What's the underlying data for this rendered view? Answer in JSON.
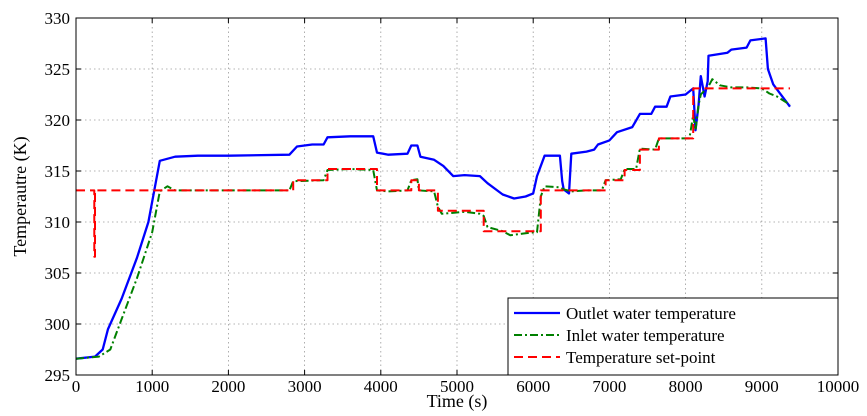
{
  "chart_data": {
    "type": "line",
    "xlabel": "Time (s)",
    "ylabel": "Temperautre (K)",
    "xlim": [
      0,
      10000
    ],
    "ylim": [
      295,
      330
    ],
    "xticks": [
      0,
      1000,
      2000,
      3000,
      4000,
      5000,
      6000,
      7000,
      8000,
      9000,
      10000
    ],
    "yticks": [
      295,
      300,
      305,
      310,
      315,
      320,
      325,
      330
    ],
    "grid": true,
    "legend_position": "bottom-right",
    "series": [
      {
        "name": "Outlet water temperature",
        "color": "#0000ff",
        "style": "solid",
        "points": [
          [
            0,
            296.6
          ],
          [
            250,
            296.8
          ],
          [
            350,
            297.5
          ],
          [
            420,
            299.5
          ],
          [
            600,
            302.5
          ],
          [
            800,
            306.5
          ],
          [
            950,
            310
          ],
          [
            1050,
            314
          ],
          [
            1100,
            316
          ],
          [
            1300,
            316.4
          ],
          [
            1600,
            316.5
          ],
          [
            2000,
            316.5
          ],
          [
            2800,
            316.6
          ],
          [
            2900,
            317.4
          ],
          [
            3100,
            317.6
          ],
          [
            3250,
            317.6
          ],
          [
            3300,
            318.3
          ],
          [
            3600,
            318.4
          ],
          [
            3900,
            318.4
          ],
          [
            3950,
            316.8
          ],
          [
            4100,
            316.6
          ],
          [
            4350,
            316.7
          ],
          [
            4400,
            317.5
          ],
          [
            4480,
            317.5
          ],
          [
            4520,
            316.4
          ],
          [
            4700,
            316.1
          ],
          [
            4820,
            315.5
          ],
          [
            4950,
            314.5
          ],
          [
            5100,
            314.6
          ],
          [
            5300,
            314.5
          ],
          [
            5400,
            313.8
          ],
          [
            5600,
            312.7
          ],
          [
            5750,
            312.3
          ],
          [
            5900,
            312.5
          ],
          [
            6000,
            312.8
          ],
          [
            6050,
            314.5
          ],
          [
            6150,
            316.5
          ],
          [
            6350,
            316.5
          ],
          [
            6380,
            314
          ],
          [
            6400,
            313.2
          ],
          [
            6470,
            312.8
          ],
          [
            6500,
            316.7
          ],
          [
            6700,
            316.9
          ],
          [
            6800,
            317.1
          ],
          [
            6850,
            317.6
          ],
          [
            7000,
            318
          ],
          [
            7100,
            318.8
          ],
          [
            7300,
            319.3
          ],
          [
            7400,
            320.6
          ],
          [
            7550,
            320.6
          ],
          [
            7600,
            321.3
          ],
          [
            7750,
            321.3
          ],
          [
            7800,
            322.3
          ],
          [
            8000,
            322.5
          ],
          [
            8100,
            323.1
          ],
          [
            8130,
            319
          ],
          [
            8170,
            321.5
          ],
          [
            8200,
            324.3
          ],
          [
            8250,
            322.3
          ],
          [
            8290,
            323.8
          ],
          [
            8300,
            326.3
          ],
          [
            8550,
            326.6
          ],
          [
            8600,
            326.9
          ],
          [
            8800,
            327.1
          ],
          [
            8850,
            327.8
          ],
          [
            9050,
            328
          ],
          [
            9080,
            325
          ],
          [
            9150,
            323.5
          ],
          [
            9200,
            323
          ],
          [
            9370,
            321.3
          ]
        ]
      },
      {
        "name": "Inlet water temperature",
        "color": "#008000",
        "style": "dashdot",
        "points": [
          [
            0,
            296.6
          ],
          [
            300,
            296.8
          ],
          [
            450,
            297.5
          ],
          [
            600,
            300.5
          ],
          [
            800,
            304.5
          ],
          [
            1000,
            309
          ],
          [
            1100,
            313
          ],
          [
            1200,
            313.5
          ],
          [
            1300,
            313.1
          ],
          [
            1600,
            313.1
          ],
          [
            2000,
            313.1
          ],
          [
            2800,
            313.1
          ],
          [
            2850,
            314
          ],
          [
            3250,
            314.1
          ],
          [
            3300,
            315.1
          ],
          [
            3600,
            315.2
          ],
          [
            3900,
            315.1
          ],
          [
            3950,
            313.1
          ],
          [
            4100,
            313
          ],
          [
            4350,
            313.1
          ],
          [
            4400,
            314.1
          ],
          [
            4480,
            314.2
          ],
          [
            4500,
            313.1
          ],
          [
            4700,
            313
          ],
          [
            4750,
            311.5
          ],
          [
            4800,
            310.8
          ],
          [
            5100,
            311
          ],
          [
            5300,
            310.8
          ],
          [
            5350,
            310.6
          ],
          [
            5400,
            309.5
          ],
          [
            5600,
            309.1
          ],
          [
            5700,
            308.7
          ],
          [
            5900,
            308.9
          ],
          [
            6050,
            309
          ],
          [
            6100,
            312.5
          ],
          [
            6150,
            313.5
          ],
          [
            6350,
            313.4
          ],
          [
            6400,
            313.2
          ],
          [
            6500,
            313
          ],
          [
            6700,
            313.1
          ],
          [
            6900,
            313.1
          ],
          [
            6950,
            314.1
          ],
          [
            7150,
            314.2
          ],
          [
            7200,
            315.2
          ],
          [
            7350,
            315.2
          ],
          [
            7400,
            317.2
          ],
          [
            7600,
            317.1
          ],
          [
            7650,
            318.2
          ],
          [
            8050,
            318.2
          ],
          [
            8100,
            320.5
          ],
          [
            8130,
            319
          ],
          [
            8170,
            321.5
          ],
          [
            8200,
            322.5
          ],
          [
            8300,
            323.3
          ],
          [
            8350,
            324
          ],
          [
            8450,
            323.4
          ],
          [
            8600,
            323.2
          ],
          [
            8800,
            323.2
          ],
          [
            9000,
            323.1
          ],
          [
            9100,
            322.6
          ],
          [
            9200,
            322.3
          ],
          [
            9370,
            321.5
          ]
        ]
      },
      {
        "name": "Temperature set-point",
        "color": "#ff0000",
        "style": "dashed",
        "points": [
          [
            0,
            313.1
          ],
          [
            240,
            313.1
          ],
          [
            240,
            306.6
          ],
          [
            250,
            306.6
          ],
          [
            250,
            313.1
          ],
          [
            2850,
            313.1
          ],
          [
            2850,
            314.1
          ],
          [
            3300,
            314.1
          ],
          [
            3300,
            315.2
          ],
          [
            3950,
            315.2
          ],
          [
            3950,
            313.1
          ],
          [
            4400,
            313.1
          ],
          [
            4400,
            314.1
          ],
          [
            4500,
            314.1
          ],
          [
            4500,
            313.1
          ],
          [
            4750,
            313.1
          ],
          [
            4750,
            311.1
          ],
          [
            5350,
            311.1
          ],
          [
            5350,
            309.1
          ],
          [
            6100,
            309.1
          ],
          [
            6100,
            313.1
          ],
          [
            6950,
            313.1
          ],
          [
            6950,
            314.1
          ],
          [
            7200,
            314.1
          ],
          [
            7200,
            315.1
          ],
          [
            7400,
            315.1
          ],
          [
            7400,
            317.1
          ],
          [
            7650,
            317.1
          ],
          [
            7650,
            318.2
          ],
          [
            8100,
            318.2
          ],
          [
            8100,
            323.1
          ],
          [
            9370,
            323.1
          ]
        ]
      }
    ]
  }
}
